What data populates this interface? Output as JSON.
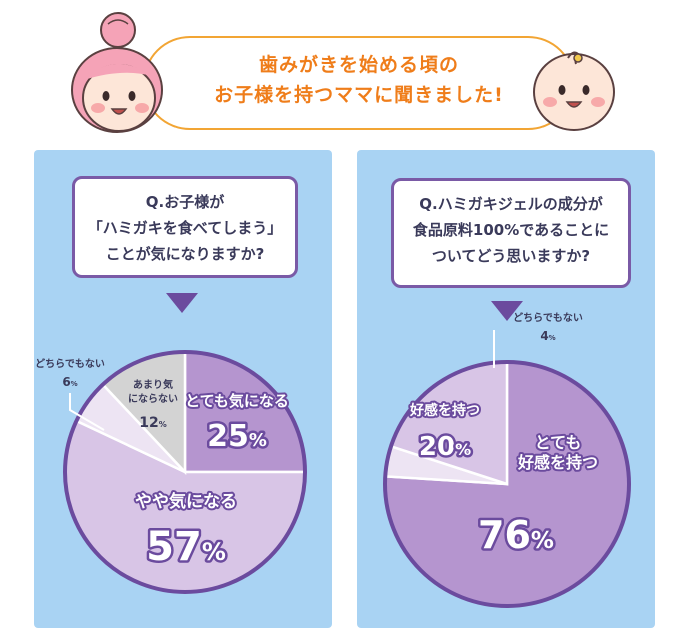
{
  "header": {
    "line1": "歯みがきを始める頃の",
    "line2": "お子様を持つママに聞きました!"
  },
  "colors": {
    "accent_orange": "#ef7d1a",
    "panel_blue": "#a9d3f3",
    "purple_dark": "#6b4b9e",
    "purple_mid": "#b595cf",
    "purple_light": "#d8c5e6",
    "gray": "#d3d3d3",
    "lavender_pale": "#ede4f3"
  },
  "chart_data": [
    {
      "type": "pie",
      "question": [
        "Q.お子様が",
        "「ハミガキを食べてしまう」",
        "ことが気になりますか?"
      ],
      "unit": "%",
      "slices": [
        {
          "label": "とても気になる",
          "value": 25,
          "color": "#b595cf"
        },
        {
          "label": "やや気になる",
          "value": 57,
          "color": "#d8c5e6"
        },
        {
          "label": "どちらでもない",
          "value": 6,
          "color": "#ede4f3"
        },
        {
          "label": "あまり気にならない",
          "value": 12,
          "color": "#d3d3d3"
        }
      ]
    },
    {
      "type": "pie",
      "question": [
        "Q.ハミガキジェルの成分が",
        "食品原料100%であることに",
        "ついてどう思いますか?"
      ],
      "unit": "%",
      "slices": [
        {
          "label": "とても好感を持つ",
          "value": 76,
          "color": "#b595cf"
        },
        {
          "label": "どちらでもない",
          "value": 4,
          "color": "#ede4f3"
        },
        {
          "label": "好感を持つ",
          "value": 20,
          "color": "#d8c5e6"
        }
      ]
    }
  ]
}
